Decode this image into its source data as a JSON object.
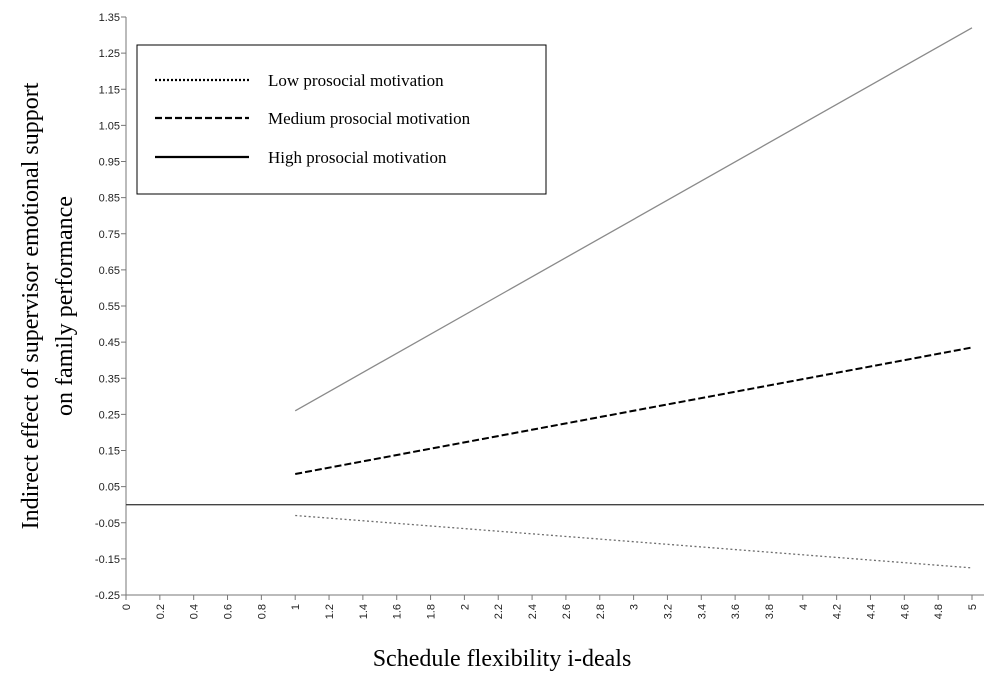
{
  "chart_data": {
    "type": "line",
    "title": "",
    "xlabel": "Schedule flexibility i-deals",
    "ylabel_lines": [
      "Indirect effect of supervisor emotional support",
      "on family performance"
    ],
    "xlim": [
      0,
      5
    ],
    "ylim": [
      -0.25,
      1.35
    ],
    "x_ticks": [
      0,
      0.2,
      0.4,
      0.6,
      0.8,
      1,
      1.2,
      1.4,
      1.6,
      1.8,
      2,
      2.2,
      2.4,
      2.6,
      2.8,
      3,
      3.2,
      3.4,
      3.6,
      3.8,
      4,
      4.2,
      4.4,
      4.6,
      4.8,
      5
    ],
    "x_tick_labels": [
      "0",
      "0.2",
      "0.4",
      "0.6",
      "0.8",
      "1",
      "1.2",
      "1.4",
      "1.6",
      "1.8",
      "2",
      "2.2",
      "2.4",
      "2.6",
      "2.8",
      "3",
      "3.2",
      "3.4",
      "3.6",
      "3.8",
      "4",
      "4.2",
      "4.4",
      "4.6",
      "4.8",
      "5"
    ],
    "y_ticks": [
      -0.25,
      -0.15,
      -0.05,
      0.05,
      0.15,
      0.25,
      0.35,
      0.45,
      0.55,
      0.65,
      0.75,
      0.85,
      0.95,
      1.05,
      1.15,
      1.25,
      1.35
    ],
    "y_tick_labels": [
      "-0.25",
      "-0.15",
      "-0.05",
      "0.05",
      "0.15",
      "0.25",
      "0.35",
      "0.45",
      "0.55",
      "0.65",
      "0.75",
      "0.85",
      "0.95",
      "1.05",
      "1.15",
      "1.25",
      "1.35"
    ],
    "reference_line_y": 0,
    "legend_placement": "top-left",
    "grid": false,
    "series": [
      {
        "name": "Low prosocial motivation",
        "style": "dotted",
        "color": "#6e6e6e",
        "legend_color": "#000000",
        "x": [
          1,
          5
        ],
        "y": [
          -0.03,
          -0.175
        ]
      },
      {
        "name": "Medium  prosocial motivation",
        "style": "dashed",
        "color": "#000000",
        "legend_color": "#000000",
        "x": [
          1,
          5
        ],
        "y": [
          0.085,
          0.435
        ]
      },
      {
        "name": "High prosocial motivation",
        "style": "solid",
        "color": "#8a8a8a",
        "legend_color": "#000000",
        "x": [
          1,
          5
        ],
        "y": [
          0.26,
          1.32
        ]
      }
    ]
  }
}
